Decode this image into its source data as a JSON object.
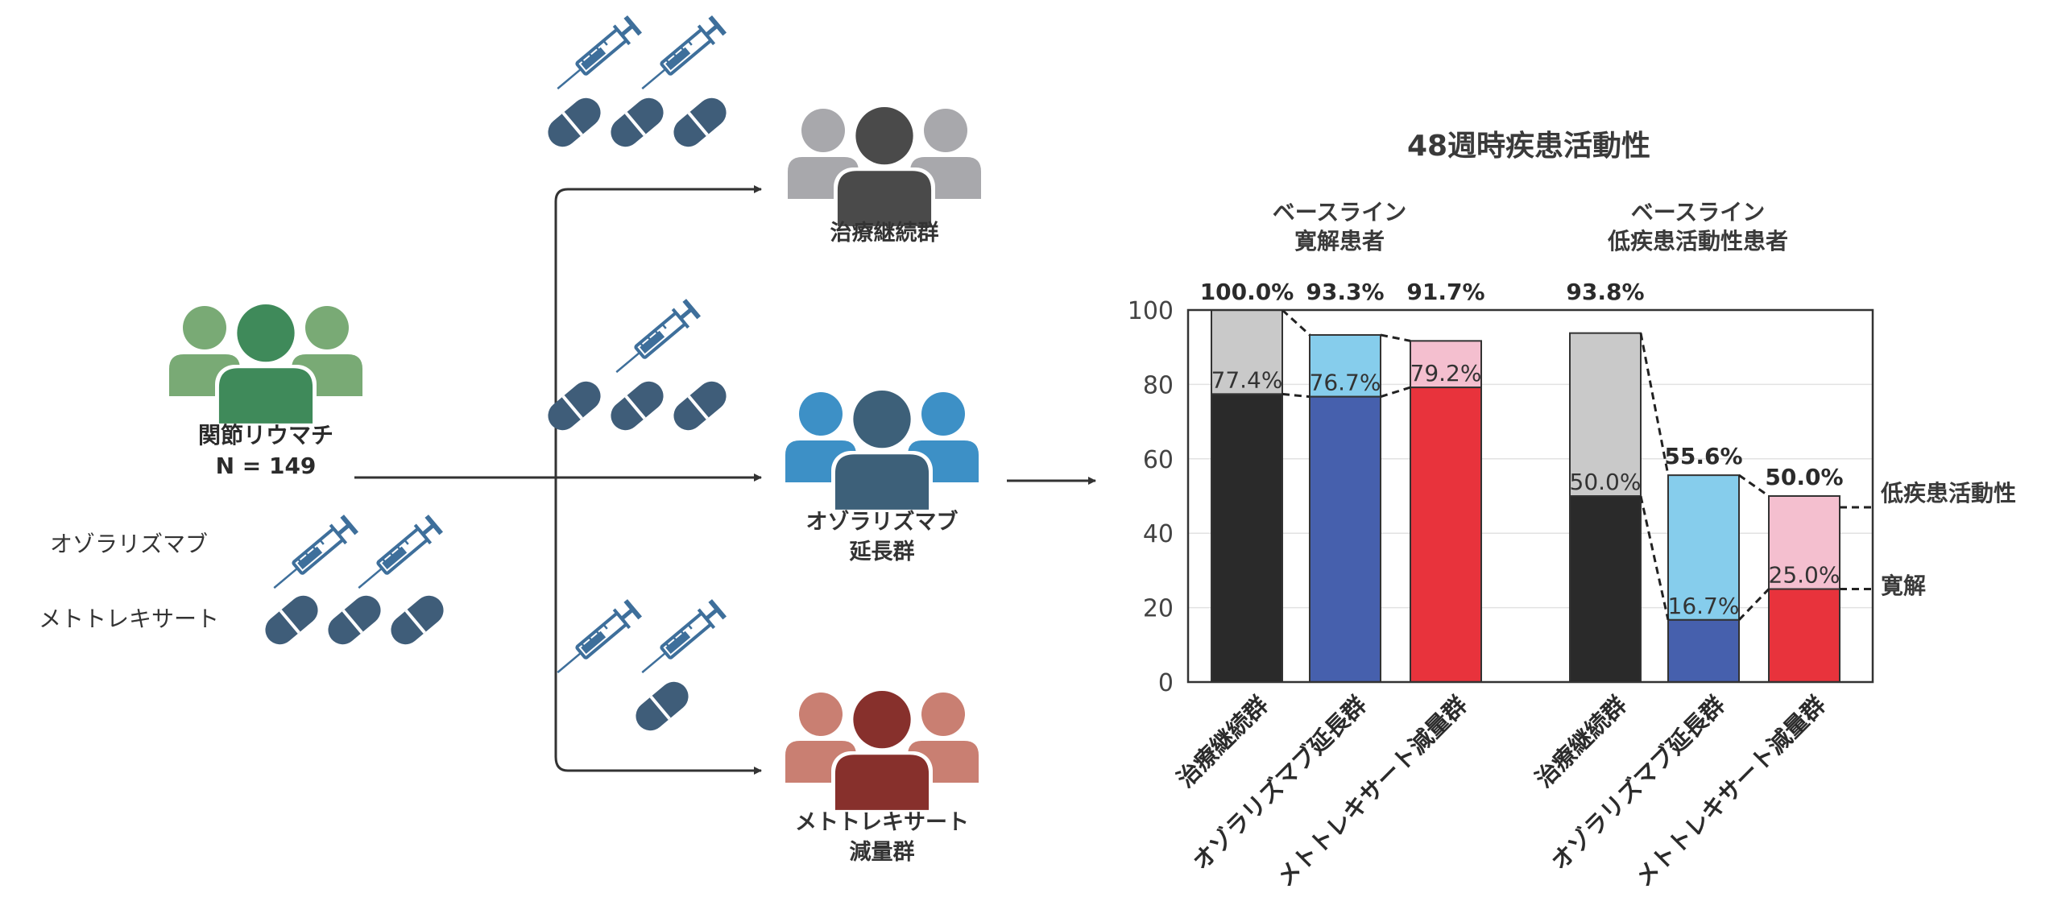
{
  "study": {
    "population_label": "関節リウマチ",
    "n_label": "N = 149",
    "drug1": "オゾラリズマブ",
    "drug2": "メトトレキサート"
  },
  "arms": [
    {
      "name": "治療継続群",
      "name2": "",
      "color": "#4a4a4a",
      "side_color": "#a8a8ac",
      "injections": 2,
      "pills": 3
    },
    {
      "name": "オゾラリズマブ",
      "name2": "延長群",
      "color": "#3d6079",
      "side_color": "#3d90c6",
      "injections": 1,
      "pills": 3
    },
    {
      "name": "メトトレキサート",
      "name2": "減量群",
      "color": "#87302c",
      "side_color": "#c97f72",
      "injections": 2,
      "pills": 1
    }
  ],
  "colors": {
    "baseline_group": "#3f8a5a",
    "baseline_group_side": "#79aa75",
    "pill": "#3f5d79",
    "syringe": "#3e6f9b"
  },
  "chart_data": {
    "type": "bar",
    "title": "48週時疾患活動性",
    "ylim": [
      0,
      100
    ],
    "yticks": [
      0,
      20,
      40,
      60,
      80,
      100
    ],
    "grid": true,
    "groups": [
      {
        "title_line1": "ベースライン",
        "title_line2": "寛解患者",
        "categories": [
          "治療継続群",
          "オゾラリズマブ延長群",
          "メトトレキサート減量群"
        ],
        "remission": [
          77.4,
          76.7,
          79.2
        ],
        "low_activity_total": [
          100.0,
          93.3,
          91.7
        ],
        "remission_labels": [
          "77.4%",
          "76.7%",
          "79.2%"
        ],
        "total_labels": [
          "100.0%",
          "93.3%",
          "91.7%"
        ]
      },
      {
        "title_line1": "ベースライン",
        "title_line2": "低疾患活動性患者",
        "categories": [
          "治療継続群",
          "オゾラリズマブ延長群",
          "メトトレキサート減量群"
        ],
        "remission": [
          50.0,
          16.7,
          25.0
        ],
        "low_activity_total": [
          93.8,
          55.6,
          50.0
        ],
        "remission_labels": [
          "50.0%",
          "16.7%",
          "25.0%"
        ],
        "total_labels": [
          "93.8%",
          "55.6%",
          "50.0%"
        ]
      }
    ],
    "series_legend": {
      "low_activity": "低疾患活動性",
      "remission": "寛解"
    },
    "bar_colors": [
      {
        "remission": "#2a2a2a",
        "low": "#c9c9c9"
      },
      {
        "remission": "#4660ad",
        "low": "#86cdec"
      },
      {
        "remission": "#e8333c",
        "low": "#f4bfcf"
      }
    ]
  }
}
